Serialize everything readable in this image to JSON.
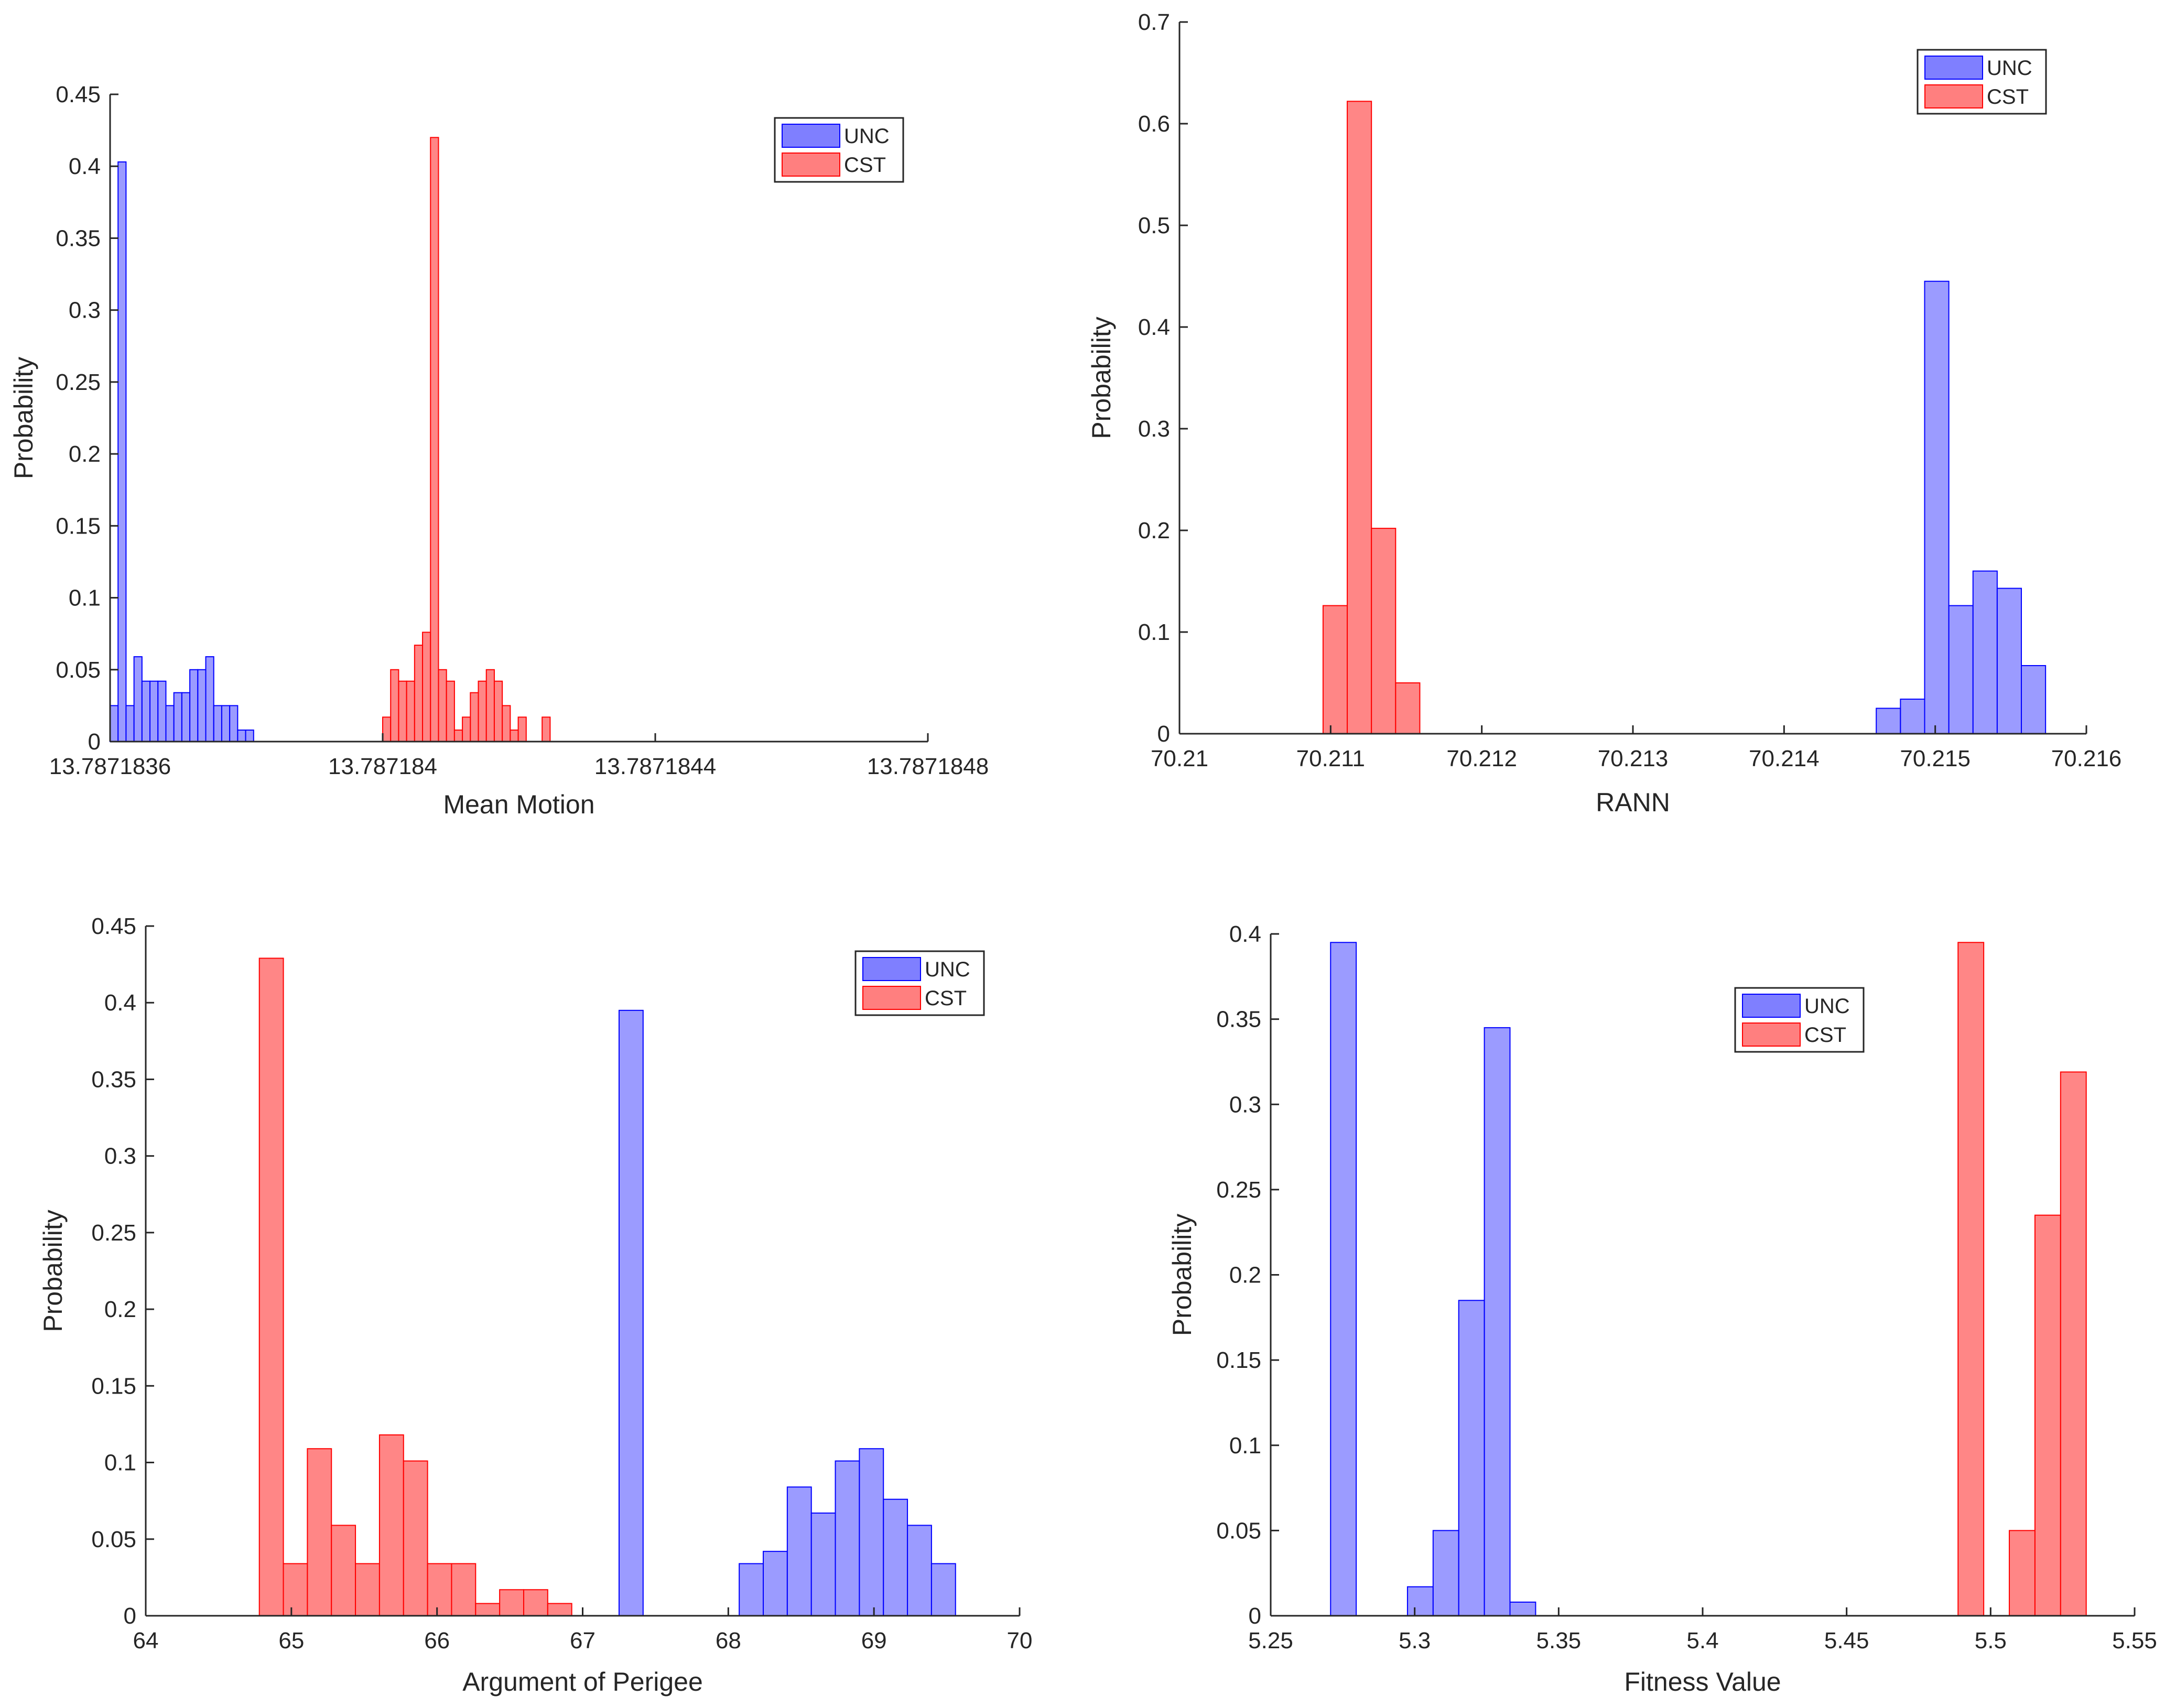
{
  "chart_data": [
    {
      "type": "bar",
      "title": "",
      "xlabel": "Mean Motion",
      "ylabel": "Probability",
      "xlim": [
        13.7871836,
        13.7871848
      ],
      "ylim": [
        0,
        0.45
      ],
      "xticks": [
        13.7871836,
        13.787184,
        13.7871844,
        13.7871848
      ],
      "xtick_labels": [
        "13.7871836",
        "13.787184",
        "13.7871844",
        "13.7871848"
      ],
      "yticks": [
        0,
        0.05,
        0.1,
        0.15,
        0.2,
        0.25,
        0.3,
        0.35,
        0.4,
        0.45
      ],
      "ytick_labels": [
        "0",
        "0.05",
        "0.1",
        "0.15",
        "0.2",
        "0.25",
        "0.3",
        "0.35",
        "0.4",
        "0.45"
      ],
      "legend": "top-right",
      "series": [
        {
          "name": "UNC",
          "color": "#0000ff",
          "x_start": 13.7871836,
          "bin_width": 1.17e-08,
          "values": [
            0.025,
            0.403,
            0.025,
            0.059,
            0.042,
            0.042,
            0.042,
            0.025,
            0.034,
            0.034,
            0.05,
            0.05,
            0.059,
            0.025,
            0.025,
            0.025,
            0.008,
            0.008
          ]
        },
        {
          "name": "CST",
          "color": "#ff0000",
          "x_start": 13.787184,
          "bin_width": 1.17e-08,
          "values": [
            0.017,
            0.05,
            0.042,
            0.042,
            0.067,
            0.076,
            0.42,
            0.05,
            0.042,
            0.008,
            0.017,
            0.034,
            0.042,
            0.05,
            0.042,
            0.025,
            0.008,
            0.017,
            0,
            0,
            0.017
          ]
        }
      ]
    },
    {
      "type": "bar",
      "title": "",
      "xlabel": "RANN",
      "ylabel": "Probability",
      "xlim": [
        70.21,
        70.216
      ],
      "ylim": [
        0,
        0.7
      ],
      "xticks": [
        70.21,
        70.211,
        70.212,
        70.213,
        70.214,
        70.215,
        70.216
      ],
      "xtick_labels": [
        "70.21",
        "70.211",
        "70.212",
        "70.213",
        "70.214",
        "70.215",
        "70.216"
      ],
      "yticks": [
        0,
        0.1,
        0.2,
        0.3,
        0.4,
        0.5,
        0.6,
        0.7
      ],
      "ytick_labels": [
        "0",
        "0.1",
        "0.2",
        "0.3",
        "0.4",
        "0.5",
        "0.6",
        "0.7"
      ],
      "legend": "top-right",
      "series": [
        {
          "name": "UNC",
          "color": "#0000ff",
          "x_start": 70.21461,
          "bin_width": 0.00016,
          "values": [
            0.025,
            0.034,
            0.445,
            0.126,
            0.16,
            0.143,
            0.067
          ]
        },
        {
          "name": "CST",
          "color": "#ff0000",
          "x_start": 70.21095,
          "bin_width": 0.00016,
          "values": [
            0.126,
            0.622,
            0.202,
            0.05
          ]
        }
      ]
    },
    {
      "type": "bar",
      "title": "",
      "xlabel": "Argument of Perigee",
      "ylabel": "Probability",
      "xlim": [
        64,
        70
      ],
      "ylim": [
        0,
        0.45
      ],
      "xticks": [
        64,
        65,
        66,
        67,
        68,
        69,
        70
      ],
      "xtick_labels": [
        "64",
        "65",
        "66",
        "67",
        "68",
        "69",
        "70"
      ],
      "yticks": [
        0,
        0.05,
        0.1,
        0.15,
        0.2,
        0.25,
        0.3,
        0.35,
        0.4,
        0.45
      ],
      "ytick_labels": [
        "0",
        "0.05",
        "0.1",
        "0.15",
        "0.2",
        "0.25",
        "0.3",
        "0.35",
        "0.4",
        "0.45"
      ],
      "legend": "top-right",
      "series": [
        {
          "name": "UNC",
          "color": "#0000ff",
          "x_start": 67.25,
          "bin_width": 0.165,
          "values": [
            0.395,
            0,
            0,
            0,
            0,
            0.034,
            0.042,
            0.084,
            0.067,
            0.101,
            0.109,
            0.076,
            0.059,
            0.034
          ]
        },
        {
          "name": "CST",
          "color": "#ff0000",
          "x_start": 64.78,
          "bin_width": 0.165,
          "values": [
            0.429,
            0.034,
            0.109,
            0.059,
            0.034,
            0.118,
            0.101,
            0.034,
            0.034,
            0.008,
            0.017,
            0.017,
            0.008
          ]
        }
      ]
    },
    {
      "type": "bar",
      "title": "",
      "xlabel": "Fitness Value",
      "ylabel": "Probability",
      "xlim": [
        5.25,
        5.55
      ],
      "ylim": [
        0,
        0.4
      ],
      "xticks": [
        5.25,
        5.3,
        5.35,
        5.4,
        5.45,
        5.5,
        5.55
      ],
      "xtick_labels": [
        "5.25",
        "5.3",
        "5.35",
        "5.4",
        "5.45",
        "5.5",
        "5.55"
      ],
      "yticks": [
        0,
        0.05,
        0.1,
        0.15,
        0.2,
        0.25,
        0.3,
        0.35,
        0.4
      ],
      "ytick_labels": [
        "0",
        "0.05",
        "0.1",
        "0.15",
        "0.2",
        "0.25",
        "0.3",
        "0.35",
        "0.4"
      ],
      "legend": "top-right",
      "series": [
        {
          "name": "UNC",
          "color": "#0000ff",
          "x_start": 5.2708,
          "bin_width": 0.0089,
          "values": [
            0.395,
            0,
            0,
            0.017,
            0.05,
            0.185,
            0.345,
            0.008
          ]
        },
        {
          "name": "CST",
          "color": "#ff0000",
          "x_start": 5.4887,
          "bin_width": 0.0089,
          "values": [
            0.395,
            0,
            0.05,
            0.235,
            0.319
          ]
        }
      ]
    }
  ]
}
